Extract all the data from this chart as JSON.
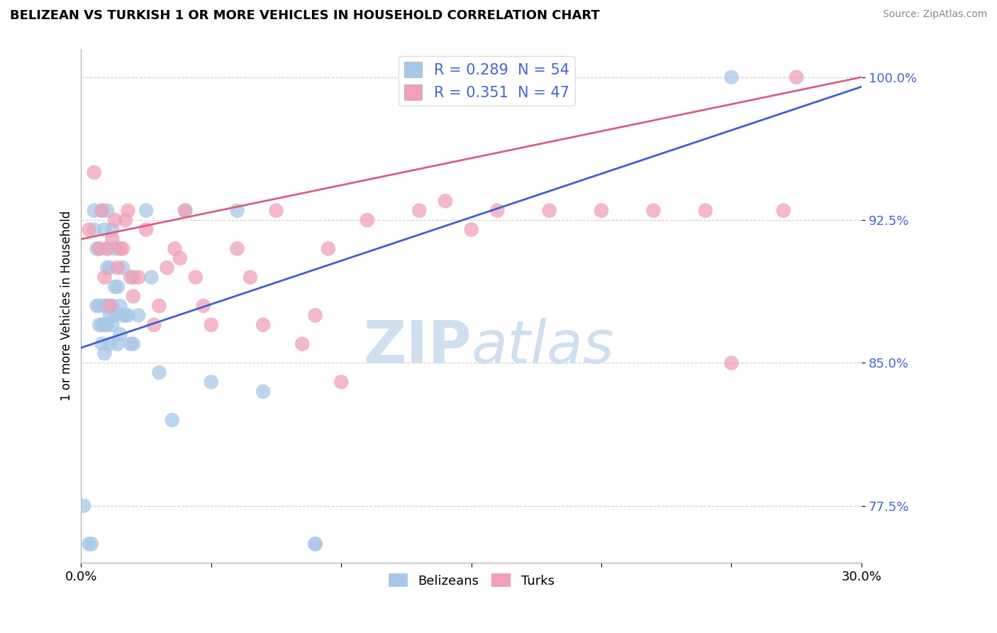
{
  "title": "BELIZEAN VS TURKISH 1 OR MORE VEHICLES IN HOUSEHOLD CORRELATION CHART",
  "ylabel": "1 or more Vehicles in Household",
  "source_text": "Source: ZipAtlas.com",
  "xlim": [
    0.0,
    0.3
  ],
  "ylim": [
    0.745,
    1.015
  ],
  "belizean_R": 0.289,
  "belizean_N": 54,
  "turkish_R": 0.351,
  "turkish_N": 47,
  "belizean_color": "#a8c8e8",
  "turkish_color": "#f0a0b8",
  "trendline_blue": "#4060d0",
  "trendline_pink": "#d86080",
  "watermark_color": "#d0dff0",
  "belizean_points_x": [
    0.001,
    0.003,
    0.004,
    0.005,
    0.005,
    0.006,
    0.006,
    0.007,
    0.007,
    0.007,
    0.008,
    0.008,
    0.008,
    0.009,
    0.009,
    0.009,
    0.009,
    0.01,
    0.01,
    0.01,
    0.01,
    0.01,
    0.011,
    0.011,
    0.011,
    0.012,
    0.012,
    0.012,
    0.013,
    0.013,
    0.013,
    0.014,
    0.014,
    0.015,
    0.015,
    0.016,
    0.016,
    0.017,
    0.018,
    0.019,
    0.02,
    0.02,
    0.022,
    0.025,
    0.027,
    0.03,
    0.035,
    0.04,
    0.05,
    0.06,
    0.07,
    0.09,
    0.09,
    0.25
  ],
  "belizean_points_y": [
    0.775,
    0.755,
    0.755,
    0.92,
    0.93,
    0.88,
    0.91,
    0.87,
    0.88,
    0.91,
    0.86,
    0.87,
    0.93,
    0.855,
    0.87,
    0.88,
    0.92,
    0.87,
    0.88,
    0.9,
    0.91,
    0.93,
    0.86,
    0.875,
    0.9,
    0.87,
    0.88,
    0.92,
    0.875,
    0.89,
    0.91,
    0.86,
    0.89,
    0.865,
    0.88,
    0.875,
    0.9,
    0.875,
    0.875,
    0.86,
    0.86,
    0.895,
    0.875,
    0.93,
    0.895,
    0.845,
    0.82,
    0.93,
    0.84,
    0.93,
    0.835,
    0.755,
    0.755,
    1.0
  ],
  "turkish_points_x": [
    0.003,
    0.005,
    0.007,
    0.008,
    0.009,
    0.01,
    0.011,
    0.012,
    0.013,
    0.014,
    0.015,
    0.016,
    0.017,
    0.018,
    0.019,
    0.02,
    0.022,
    0.025,
    0.028,
    0.03,
    0.033,
    0.036,
    0.038,
    0.04,
    0.044,
    0.047,
    0.05,
    0.06,
    0.065,
    0.07,
    0.075,
    0.085,
    0.09,
    0.095,
    0.1,
    0.11,
    0.13,
    0.14,
    0.15,
    0.16,
    0.18,
    0.2,
    0.22,
    0.24,
    0.25,
    0.27,
    0.275
  ],
  "turkish_points_y": [
    0.92,
    0.95,
    0.91,
    0.93,
    0.895,
    0.91,
    0.88,
    0.915,
    0.925,
    0.9,
    0.91,
    0.91,
    0.925,
    0.93,
    0.895,
    0.885,
    0.895,
    0.92,
    0.87,
    0.88,
    0.9,
    0.91,
    0.905,
    0.93,
    0.895,
    0.88,
    0.87,
    0.91,
    0.895,
    0.87,
    0.93,
    0.86,
    0.875,
    0.91,
    0.84,
    0.925,
    0.93,
    0.935,
    0.92,
    0.93,
    0.93,
    0.93,
    0.93,
    0.93,
    0.85,
    0.93,
    1.0
  ],
  "bel_trend_x0": 0.0,
  "bel_trend_y0": 0.858,
  "bel_trend_x1": 0.3,
  "bel_trend_y1": 0.995,
  "turk_trend_x0": 0.0,
  "turk_trend_y0": 0.915,
  "turk_trend_x1": 0.3,
  "turk_trend_y1": 1.0
}
